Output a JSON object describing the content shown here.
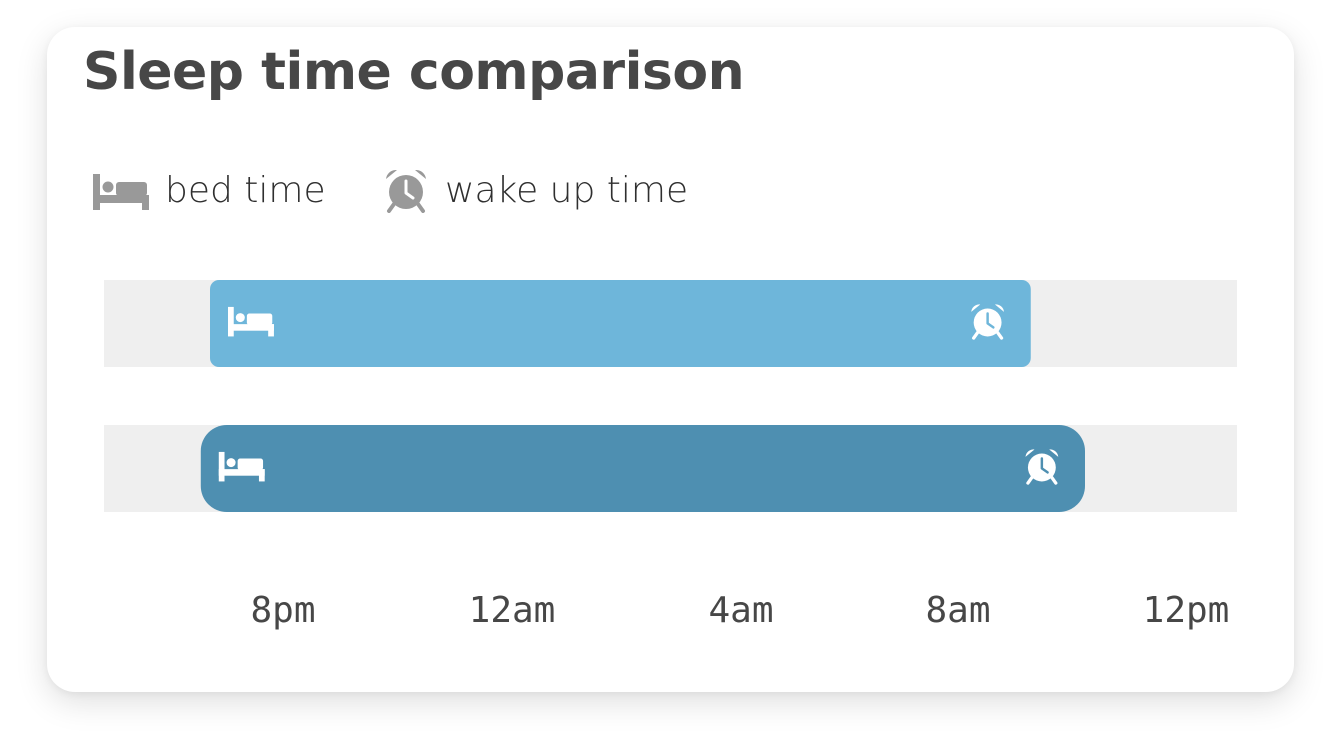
{
  "title": "Sleep time comparison",
  "legend": [
    {
      "icon": "bed-icon",
      "label": "bed time"
    },
    {
      "icon": "alarm-clock-icon",
      "label": "wake up time"
    }
  ],
  "colors": {
    "track": "#efefef",
    "icon_gray": "#999999",
    "icon_white": "#ffffff",
    "series": [
      "#6eb6da",
      "#4e8fb1"
    ]
  },
  "chart_data": {
    "type": "bar",
    "orientation": "horizontal",
    "title": "Sleep time comparison",
    "xlabel": "",
    "ylabel": "",
    "x_ticks": [
      "8pm",
      "12am",
      "4am",
      "8am",
      "12pm"
    ],
    "x_axis_unit": "hours",
    "series": [
      {
        "start": "8:00pm",
        "end": "11:00am",
        "start_hours": 20.0,
        "end_hours": 35.0
      },
      {
        "start": "7:50pm",
        "end": "12:00pm",
        "start_hours": 19.83,
        "end_hours": 36.0
      }
    ],
    "legend": [
      "bed time",
      "wake up time"
    ],
    "legend_position": "top-left",
    "grid": false
  }
}
